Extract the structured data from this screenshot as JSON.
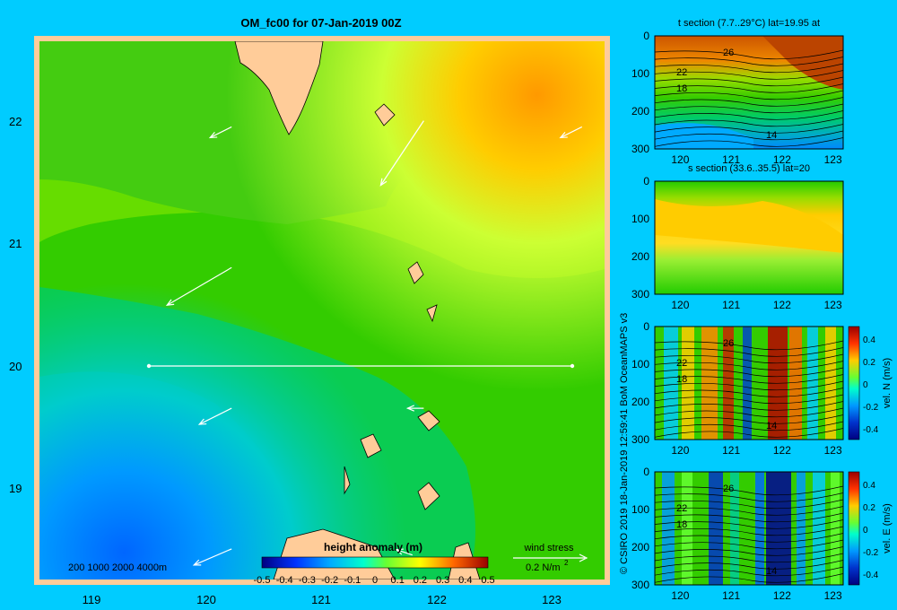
{
  "title": "OM_fc00 for 07-Jan-2019 00Z",
  "colors": {
    "background": "#00ccff",
    "land": "#ffcc99",
    "map_frame": "#ffcc99",
    "arrows": "#ffffff"
  },
  "credit": "© CSIRO 2019   18-Jan-2019 12:59:41 BoM OceanMAPS v3",
  "map": {
    "xlabels": [
      "119",
      "120",
      "121",
      "122",
      "123"
    ],
    "ylabels": [
      "22",
      "21",
      "20",
      "19"
    ],
    "depth_legend": "200  1000  2000  4000m",
    "section_line": {
      "lat": 20,
      "lon_from": 119.5,
      "lon_to": 123.2
    }
  },
  "colorbar": {
    "title": "height anomaly  (m)",
    "ticks": [
      "-0.5",
      "-0.4",
      "-0.3",
      "-0.2",
      "-0.1",
      "0",
      "0.1",
      "0.2",
      "0.3",
      "0.4",
      "0.5"
    ]
  },
  "wind_stress": {
    "label": "wind stress",
    "scale": "0.2 N/m",
    "superscript": "2"
  },
  "panels": [
    {
      "title": "t section (7.7..29°C) lat=19.95 at",
      "yticks": [
        "0",
        "100",
        "200",
        "300"
      ],
      "xticks": [
        "120",
        "121",
        "122",
        "123"
      ],
      "contour_labels": [
        "26",
        "22",
        "18",
        "14"
      ],
      "cbar_label": "",
      "cbar_ticks": []
    },
    {
      "title": "s section (33.6..35.5) lat=20",
      "yticks": [
        "0",
        "100",
        "200",
        "300"
      ],
      "xticks": [
        "120",
        "121",
        "122",
        "123"
      ],
      "contour_labels": [],
      "cbar_label": "",
      "cbar_ticks": []
    },
    {
      "title": "",
      "yticks": [
        "0",
        "100",
        "200",
        "300"
      ],
      "xticks": [
        "120",
        "121",
        "122",
        "123"
      ],
      "contour_labels": [
        "26",
        "22",
        "18",
        "14"
      ],
      "cbar_label": "vel. N  (m/s)",
      "cbar_ticks": [
        "0.4",
        "0.2",
        "0",
        "-0.2",
        "-0.4"
      ]
    },
    {
      "title": "",
      "yticks": [
        "0",
        "100",
        "200",
        "300"
      ],
      "xticks": [
        "120",
        "121",
        "122",
        "123"
      ],
      "contour_labels": [
        "26",
        "22",
        "18",
        "14"
      ],
      "cbar_label": "vel. E  (m/s)",
      "cbar_ticks": [
        "0.4",
        "0.2",
        "0",
        "-0.2",
        "-0.4"
      ]
    }
  ],
  "chart_data": [
    {
      "type": "heatmap",
      "title": "OM_fc00 for 07-Jan-2019 00Z",
      "xlim": [
        118.5,
        123.5
      ],
      "ylim": [
        18.3,
        22.7
      ],
      "xticks": [
        119,
        120,
        121,
        122,
        123
      ],
      "yticks": [
        22,
        21,
        20,
        19
      ],
      "colorbar_title": "height anomaly  (m)",
      "colorbar_range": [
        -0.5,
        0.5
      ],
      "wind_arrows": [
        {
          "x": 120.2,
          "y": 22.0,
          "u": -0.2,
          "v": -0.1
        },
        {
          "x": 121.9,
          "y": 22.05,
          "u": -0.4,
          "v": -0.6
        },
        {
          "x": 123.3,
          "y": 22.0,
          "u": -0.2,
          "v": -0.1
        },
        {
          "x": 120.2,
          "y": 20.85,
          "u": -0.6,
          "v": -0.35
        },
        {
          "x": 120.2,
          "y": 19.7,
          "u": -0.3,
          "v": -0.15
        },
        {
          "x": 121.9,
          "y": 19.7,
          "u": -0.15,
          "v": 0.0
        },
        {
          "x": 120.2,
          "y": 18.55,
          "u": -0.35,
          "v": -0.15
        },
        {
          "x": 121.8,
          "y": 18.5,
          "u": -0.15,
          "v": 0.05
        }
      ]
    },
    {
      "type": "heatmap",
      "title": "t section (7.7..29°C) lat=19.95 at",
      "xlim": [
        119.5,
        123.2
      ],
      "ylim": [
        300,
        0
      ]
    },
    {
      "type": "heatmap",
      "title": "s section (33.6..35.5) lat=20",
      "xlim": [
        119.5,
        123.2
      ],
      "ylim": [
        300,
        0
      ]
    },
    {
      "type": "heatmap",
      "title": "",
      "ylabel": "vel. N  (m/s)",
      "xlim": [
        119.5,
        123.2
      ],
      "ylim": [
        300,
        0
      ],
      "colorbar_range": [
        -0.4,
        0.4
      ]
    },
    {
      "type": "heatmap",
      "title": "",
      "ylabel": "vel. E  (m/s)",
      "xlim": [
        119.5,
        123.2
      ],
      "ylim": [
        300,
        0
      ],
      "colorbar_range": [
        -0.4,
        0.4
      ]
    }
  ]
}
